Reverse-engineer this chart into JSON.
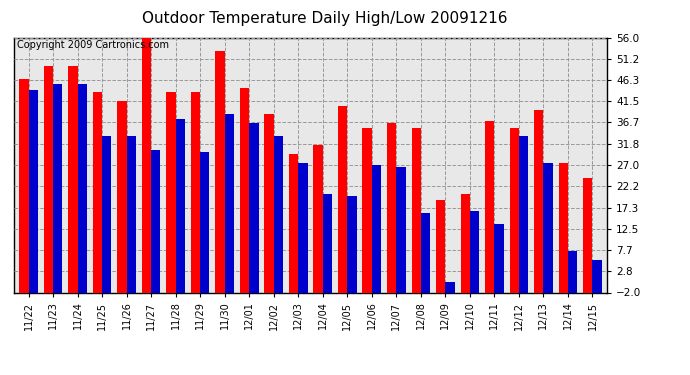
{
  "title": "Outdoor Temperature Daily High/Low 20091216",
  "copyright": "Copyright 2009 Cartronics.com",
  "dates": [
    "11/22",
    "11/23",
    "11/24",
    "11/25",
    "11/26",
    "11/27",
    "11/28",
    "11/29",
    "11/30",
    "12/01",
    "12/02",
    "12/03",
    "12/04",
    "12/05",
    "12/06",
    "12/07",
    "12/08",
    "12/09",
    "12/10",
    "12/11",
    "12/12",
    "12/13",
    "12/14",
    "12/15"
  ],
  "highs": [
    46.5,
    49.5,
    49.5,
    43.5,
    41.5,
    57.0,
    43.5,
    43.5,
    53.0,
    44.5,
    38.5,
    29.5,
    31.5,
    40.5,
    35.5,
    36.5,
    35.5,
    19.0,
    20.5,
    37.0,
    35.5,
    39.5,
    27.5,
    24.0
  ],
  "lows": [
    44.0,
    45.5,
    45.5,
    33.5,
    33.5,
    30.5,
    37.5,
    30.0,
    38.5,
    36.5,
    33.5,
    27.5,
    20.5,
    20.0,
    27.0,
    26.5,
    16.0,
    0.5,
    16.5,
    13.5,
    33.5,
    27.5,
    7.5,
    5.5
  ],
  "ylim_min": -2.0,
  "ylim_max": 56.0,
  "yticks": [
    -2.0,
    2.8,
    7.7,
    12.5,
    17.3,
    22.2,
    27.0,
    31.8,
    36.7,
    41.5,
    46.3,
    51.2,
    56.0
  ],
  "high_color": "#ff0000",
  "low_color": "#0000cc",
  "bg_color": "#ffffff",
  "plot_bg_color": "#e8e8e8",
  "grid_color": "#aaaaaa",
  "title_fontsize": 11,
  "copyright_fontsize": 7,
  "bar_width": 0.38
}
